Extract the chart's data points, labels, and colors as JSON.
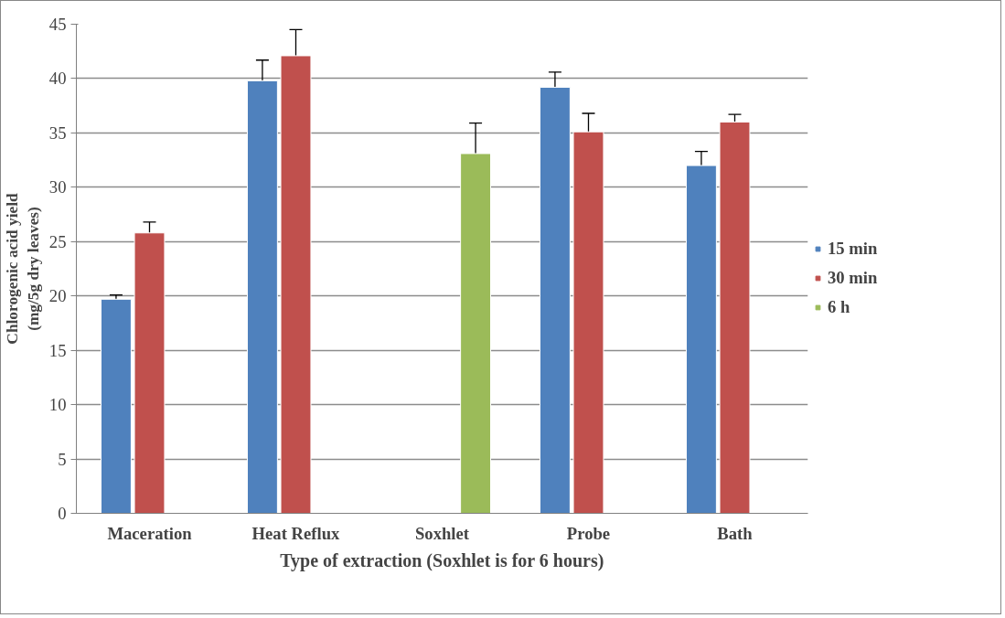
{
  "chart_data": {
    "type": "bar",
    "xlabel": "Type of extraction (Soxhlet is for 6 hours)",
    "ylabel": "Chlorogenic acid yield\n(mg/5g dry leaves)",
    "categories": [
      "Maceration",
      "Heat Reflux",
      "Soxhlet",
      "Probe",
      "Bath"
    ],
    "series": [
      {
        "name": "15 min",
        "color": "#4f81bd",
        "values": [
          19.7,
          39.8,
          null,
          39.2,
          32.0
        ],
        "errors": [
          0.4,
          1.9,
          null,
          1.4,
          1.3
        ]
      },
      {
        "name": "30 min",
        "color": "#c0504d",
        "values": [
          25.8,
          42.1,
          null,
          35.1,
          36.0
        ],
        "errors": [
          1.0,
          2.4,
          null,
          1.7,
          0.7
        ]
      },
      {
        "name": "6 h",
        "color": "#9bbb59",
        "values": [
          null,
          null,
          33.1,
          null,
          null
        ],
        "errors": [
          null,
          null,
          2.8,
          null,
          null
        ]
      }
    ],
    "ylim": [
      0,
      45
    ],
    "yticks": [
      0,
      5,
      10,
      15,
      20,
      25,
      30,
      35,
      40,
      45
    ],
    "grid": "y",
    "legend": "right"
  }
}
